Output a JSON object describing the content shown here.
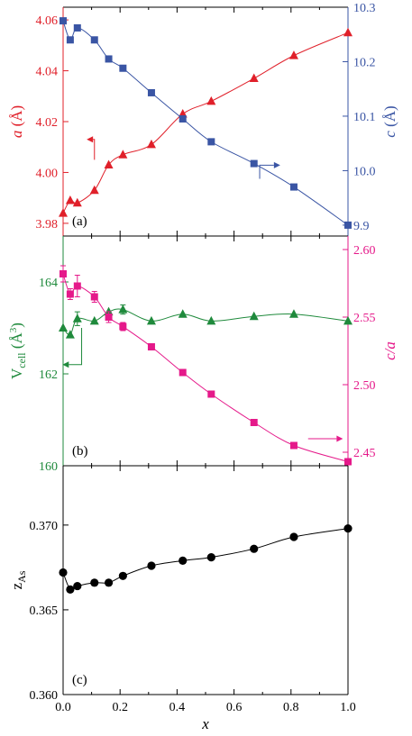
{
  "colors": {
    "red": "#e0202a",
    "blue": "#3a55a4",
    "green": "#1f8a3c",
    "magenta": "#e5198a",
    "black": "#000000"
  },
  "chart_data": [
    {
      "type": "line",
      "panel_label": "(a)",
      "xlabel": "",
      "xlim": [
        0,
        1.0
      ],
      "x_ticks": [
        0.0,
        0.2,
        0.4,
        0.6,
        0.8,
        1.0
      ],
      "left_axis": {
        "label_italic": "a",
        "label_unit": " (Å)",
        "ylim": [
          3.975,
          4.065
        ],
        "ticks": [
          3.98,
          4.0,
          4.02,
          4.04,
          4.06
        ],
        "tick_labels": [
          "3.98",
          "4.00",
          "4.02",
          "4.04",
          "4.06"
        ]
      },
      "right_axis": {
        "label_italic": "c",
        "label_unit": " (Å)",
        "ylim": [
          9.88,
          10.3
        ],
        "ticks": [
          9.9,
          10.0,
          10.1,
          10.2,
          10.3
        ],
        "tick_labels": [
          "9.9",
          "10.0",
          "10.1",
          "10.2",
          "10.3"
        ]
      },
      "series": [
        {
          "axis": "left",
          "color": "red",
          "marker": "triangle",
          "x": [
            0.0,
            0.025,
            0.05,
            0.11,
            0.16,
            0.21,
            0.31,
            0.42,
            0.52,
            0.67,
            0.81,
            1.0
          ],
          "values": [
            3.984,
            3.989,
            3.988,
            3.993,
            4.003,
            4.007,
            4.011,
            4.023,
            4.028,
            4.037,
            4.046,
            4.055
          ]
        },
        {
          "axis": "right",
          "color": "blue",
          "marker": "square",
          "x": [
            0.0,
            0.025,
            0.05,
            0.11,
            0.16,
            0.21,
            0.31,
            0.42,
            0.52,
            0.67,
            0.81,
            1.0
          ],
          "values": [
            10.275,
            10.24,
            10.262,
            10.24,
            10.205,
            10.188,
            10.143,
            10.095,
            10.053,
            10.013,
            9.97,
            9.9
          ]
        }
      ]
    },
    {
      "type": "line",
      "panel_label": "(b)",
      "xlabel": "",
      "xlim": [
        0,
        1.0
      ],
      "x_ticks": [
        0.0,
        0.2,
        0.4,
        0.6,
        0.8,
        1.0
      ],
      "left_axis": {
        "label": "V",
        "label_sub": "cell",
        "label_unit": " (Å",
        "label_sup": "3",
        "label_close": ")",
        "ylim": [
          160,
          165
        ],
        "ticks": [
          160,
          162,
          164
        ],
        "tick_labels": [
          "160",
          "162",
          "164"
        ]
      },
      "right_axis": {
        "label_italic": "c/a",
        "ylim": [
          2.44,
          2.61
        ],
        "ticks": [
          2.45,
          2.5,
          2.55,
          2.6
        ],
        "tick_labels": [
          "2.45",
          "2.50",
          "2.55",
          "2.60"
        ]
      },
      "series": [
        {
          "axis": "left",
          "color": "green",
          "marker": "triangle",
          "x": [
            0.0,
            0.025,
            0.05,
            0.11,
            0.16,
            0.21,
            0.31,
            0.42,
            0.52,
            0.67,
            0.81,
            1.0
          ],
          "values": [
            163.0,
            162.85,
            163.2,
            163.15,
            163.35,
            163.4,
            163.15,
            163.3,
            163.15,
            163.25,
            163.3,
            163.15
          ],
          "errors": [
            0,
            0,
            0.15,
            0,
            0,
            0.1,
            0,
            0,
            0,
            0,
            0,
            0
          ]
        },
        {
          "axis": "right",
          "color": "magenta",
          "marker": "square",
          "x": [
            0.0,
            0.025,
            0.05,
            0.11,
            0.16,
            0.21,
            0.31,
            0.42,
            0.52,
            0.67,
            0.81,
            1.0
          ],
          "values": [
            2.582,
            2.567,
            2.573,
            2.565,
            2.55,
            2.543,
            2.528,
            2.509,
            2.493,
            2.472,
            2.455,
            2.443
          ],
          "errors": [
            0.006,
            0.004,
            0.008,
            0.004,
            0.004,
            0.003,
            0,
            0,
            0,
            0,
            0,
            0
          ]
        }
      ]
    },
    {
      "type": "line",
      "panel_label": "(c)",
      "xlabel": "x",
      "xlim": [
        0,
        1.0
      ],
      "x_ticks": [
        0.0,
        0.2,
        0.4,
        0.6,
        0.8,
        1.0
      ],
      "x_tick_labels": [
        "0.0",
        "0.2",
        "0.4",
        "0.6",
        "0.8",
        "1.0"
      ],
      "left_axis": {
        "label": "z",
        "label_sub": "As",
        "ylim": [
          0.36,
          0.3735
        ],
        "ticks": [
          0.36,
          0.365,
          0.37
        ],
        "tick_labels": [
          "0.360",
          "0.365",
          "0.370"
        ]
      },
      "series": [
        {
          "axis": "left",
          "color": "black",
          "marker": "circle",
          "x": [
            0.0,
            0.025,
            0.05,
            0.11,
            0.16,
            0.21,
            0.31,
            0.42,
            0.52,
            0.67,
            0.81,
            1.0
          ],
          "values": [
            0.3672,
            0.3662,
            0.3664,
            0.3666,
            0.3666,
            0.367,
            0.3676,
            0.3679,
            0.3681,
            0.3686,
            0.3693,
            0.3698
          ]
        }
      ]
    }
  ]
}
